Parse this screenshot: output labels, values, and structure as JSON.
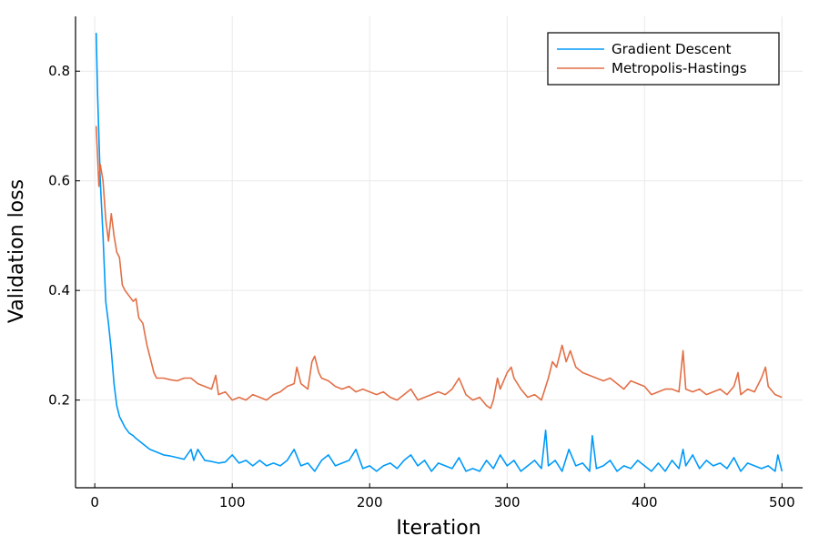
{
  "chart_data": {
    "type": "line",
    "title": "",
    "xlabel": "Iteration",
    "ylabel": "Validation loss",
    "xlim": [
      -14,
      515
    ],
    "ylim": [
      0.04,
      0.9
    ],
    "xticks": [
      0,
      100,
      200,
      300,
      400,
      500
    ],
    "yticks": [
      0.2,
      0.4,
      0.6,
      0.8
    ],
    "xtick_labels": [
      "0",
      "100",
      "200",
      "300",
      "400",
      "500"
    ],
    "ytick_labels": [
      "0.2",
      "0.4",
      "0.6",
      "0.8"
    ],
    "grid": true,
    "legend": "top-right",
    "series": [
      {
        "name": "Gradient Descent",
        "color": "#009AF9",
        "points": [
          [
            1,
            0.87
          ],
          [
            2,
            0.76
          ],
          [
            4,
            0.6
          ],
          [
            6,
            0.5
          ],
          [
            8,
            0.38
          ],
          [
            10,
            0.34
          ],
          [
            12,
            0.29
          ],
          [
            14,
            0.23
          ],
          [
            16,
            0.19
          ],
          [
            18,
            0.17
          ],
          [
            20,
            0.16
          ],
          [
            22,
            0.15
          ],
          [
            25,
            0.14
          ],
          [
            28,
            0.135
          ],
          [
            30,
            0.13
          ],
          [
            35,
            0.12
          ],
          [
            40,
            0.11
          ],
          [
            45,
            0.105
          ],
          [
            50,
            0.1
          ],
          [
            55,
            0.098
          ],
          [
            60,
            0.095
          ],
          [
            65,
            0.092
          ],
          [
            70,
            0.11
          ],
          [
            72,
            0.09
          ],
          [
            75,
            0.11
          ],
          [
            80,
            0.09
          ],
          [
            85,
            0.088
          ],
          [
            90,
            0.085
          ],
          [
            95,
            0.087
          ],
          [
            100,
            0.1
          ],
          [
            105,
            0.085
          ],
          [
            110,
            0.09
          ],
          [
            115,
            0.08
          ],
          [
            120,
            0.09
          ],
          [
            125,
            0.08
          ],
          [
            130,
            0.085
          ],
          [
            135,
            0.08
          ],
          [
            140,
            0.09
          ],
          [
            145,
            0.11
          ],
          [
            150,
            0.08
          ],
          [
            155,
            0.085
          ],
          [
            160,
            0.07
          ],
          [
            165,
            0.09
          ],
          [
            170,
            0.1
          ],
          [
            175,
            0.08
          ],
          [
            180,
            0.085
          ],
          [
            185,
            0.09
          ],
          [
            190,
            0.11
          ],
          [
            195,
            0.075
          ],
          [
            200,
            0.08
          ],
          [
            205,
            0.07
          ],
          [
            210,
            0.08
          ],
          [
            215,
            0.085
          ],
          [
            220,
            0.075
          ],
          [
            225,
            0.09
          ],
          [
            230,
            0.1
          ],
          [
            235,
            0.08
          ],
          [
            240,
            0.09
          ],
          [
            245,
            0.07
          ],
          [
            250,
            0.085
          ],
          [
            255,
            0.08
          ],
          [
            260,
            0.075
          ],
          [
            265,
            0.095
          ],
          [
            270,
            0.07
          ],
          [
            275,
            0.075
          ],
          [
            280,
            0.07
          ],
          [
            285,
            0.09
          ],
          [
            290,
            0.075
          ],
          [
            295,
            0.1
          ],
          [
            300,
            0.08
          ],
          [
            305,
            0.09
          ],
          [
            310,
            0.07
          ],
          [
            315,
            0.08
          ],
          [
            320,
            0.09
          ],
          [
            325,
            0.075
          ],
          [
            328,
            0.145
          ],
          [
            330,
            0.08
          ],
          [
            335,
            0.09
          ],
          [
            340,
            0.07
          ],
          [
            345,
            0.11
          ],
          [
            350,
            0.08
          ],
          [
            355,
            0.085
          ],
          [
            360,
            0.07
          ],
          [
            362,
            0.135
          ],
          [
            365,
            0.075
          ],
          [
            370,
            0.08
          ],
          [
            375,
            0.09
          ],
          [
            380,
            0.07
          ],
          [
            385,
            0.08
          ],
          [
            390,
            0.075
          ],
          [
            395,
            0.09
          ],
          [
            400,
            0.08
          ],
          [
            405,
            0.07
          ],
          [
            410,
            0.085
          ],
          [
            415,
            0.07
          ],
          [
            420,
            0.09
          ],
          [
            425,
            0.075
          ],
          [
            428,
            0.11
          ],
          [
            430,
            0.08
          ],
          [
            435,
            0.1
          ],
          [
            440,
            0.075
          ],
          [
            445,
            0.09
          ],
          [
            450,
            0.08
          ],
          [
            455,
            0.085
          ],
          [
            460,
            0.075
          ],
          [
            465,
            0.095
          ],
          [
            470,
            0.07
          ],
          [
            475,
            0.085
          ],
          [
            480,
            0.08
          ],
          [
            485,
            0.075
          ],
          [
            490,
            0.08
          ],
          [
            495,
            0.07
          ],
          [
            497,
            0.1
          ],
          [
            500,
            0.07
          ]
        ]
      },
      {
        "name": "Metropolis-Hastings",
        "color": "#E26F46",
        "points": [
          [
            1,
            0.7
          ],
          [
            3,
            0.59
          ],
          [
            4,
            0.63
          ],
          [
            6,
            0.6
          ],
          [
            8,
            0.53
          ],
          [
            10,
            0.49
          ],
          [
            12,
            0.54
          ],
          [
            14,
            0.5
          ],
          [
            16,
            0.47
          ],
          [
            18,
            0.46
          ],
          [
            20,
            0.41
          ],
          [
            22,
            0.4
          ],
          [
            25,
            0.39
          ],
          [
            28,
            0.38
          ],
          [
            30,
            0.385
          ],
          [
            32,
            0.35
          ],
          [
            35,
            0.34
          ],
          [
            38,
            0.3
          ],
          [
            40,
            0.28
          ],
          [
            43,
            0.25
          ],
          [
            45,
            0.24
          ],
          [
            50,
            0.24
          ],
          [
            55,
            0.237
          ],
          [
            60,
            0.235
          ],
          [
            65,
            0.24
          ],
          [
            70,
            0.24
          ],
          [
            75,
            0.23
          ],
          [
            80,
            0.225
          ],
          [
            85,
            0.22
          ],
          [
            88,
            0.245
          ],
          [
            90,
            0.21
          ],
          [
            95,
            0.215
          ],
          [
            100,
            0.2
          ],
          [
            105,
            0.205
          ],
          [
            110,
            0.2
          ],
          [
            115,
            0.21
          ],
          [
            120,
            0.205
          ],
          [
            125,
            0.2
          ],
          [
            130,
            0.21
          ],
          [
            135,
            0.215
          ],
          [
            140,
            0.225
          ],
          [
            145,
            0.23
          ],
          [
            147,
            0.26
          ],
          [
            150,
            0.23
          ],
          [
            155,
            0.22
          ],
          [
            158,
            0.27
          ],
          [
            160,
            0.28
          ],
          [
            163,
            0.25
          ],
          [
            165,
            0.24
          ],
          [
            170,
            0.235
          ],
          [
            175,
            0.225
          ],
          [
            180,
            0.22
          ],
          [
            185,
            0.225
          ],
          [
            190,
            0.215
          ],
          [
            195,
            0.22
          ],
          [
            200,
            0.215
          ],
          [
            205,
            0.21
          ],
          [
            210,
            0.215
          ],
          [
            215,
            0.205
          ],
          [
            220,
            0.2
          ],
          [
            225,
            0.21
          ],
          [
            230,
            0.22
          ],
          [
            235,
            0.2
          ],
          [
            240,
            0.205
          ],
          [
            245,
            0.21
          ],
          [
            250,
            0.215
          ],
          [
            255,
            0.21
          ],
          [
            260,
            0.22
          ],
          [
            265,
            0.24
          ],
          [
            270,
            0.21
          ],
          [
            275,
            0.2
          ],
          [
            280,
            0.205
          ],
          [
            285,
            0.19
          ],
          [
            288,
            0.185
          ],
          [
            290,
            0.2
          ],
          [
            293,
            0.24
          ],
          [
            295,
            0.22
          ],
          [
            300,
            0.25
          ],
          [
            303,
            0.26
          ],
          [
            305,
            0.24
          ],
          [
            310,
            0.22
          ],
          [
            315,
            0.205
          ],
          [
            320,
            0.21
          ],
          [
            325,
            0.2
          ],
          [
            330,
            0.24
          ],
          [
            333,
            0.27
          ],
          [
            336,
            0.26
          ],
          [
            340,
            0.3
          ],
          [
            343,
            0.27
          ],
          [
            346,
            0.29
          ],
          [
            350,
            0.26
          ],
          [
            355,
            0.25
          ],
          [
            360,
            0.245
          ],
          [
            365,
            0.24
          ],
          [
            370,
            0.235
          ],
          [
            375,
            0.24
          ],
          [
            380,
            0.23
          ],
          [
            385,
            0.22
          ],
          [
            390,
            0.235
          ],
          [
            395,
            0.23
          ],
          [
            400,
            0.225
          ],
          [
            405,
            0.21
          ],
          [
            410,
            0.215
          ],
          [
            415,
            0.22
          ],
          [
            420,
            0.22
          ],
          [
            425,
            0.215
          ],
          [
            428,
            0.29
          ],
          [
            430,
            0.22
          ],
          [
            435,
            0.215
          ],
          [
            440,
            0.22
          ],
          [
            445,
            0.21
          ],
          [
            450,
            0.215
          ],
          [
            455,
            0.22
          ],
          [
            460,
            0.21
          ],
          [
            465,
            0.225
          ],
          [
            468,
            0.25
          ],
          [
            470,
            0.21
          ],
          [
            475,
            0.22
          ],
          [
            480,
            0.215
          ],
          [
            485,
            0.24
          ],
          [
            488,
            0.26
          ],
          [
            490,
            0.225
          ],
          [
            495,
            0.21
          ],
          [
            500,
            0.205
          ]
        ]
      }
    ]
  }
}
